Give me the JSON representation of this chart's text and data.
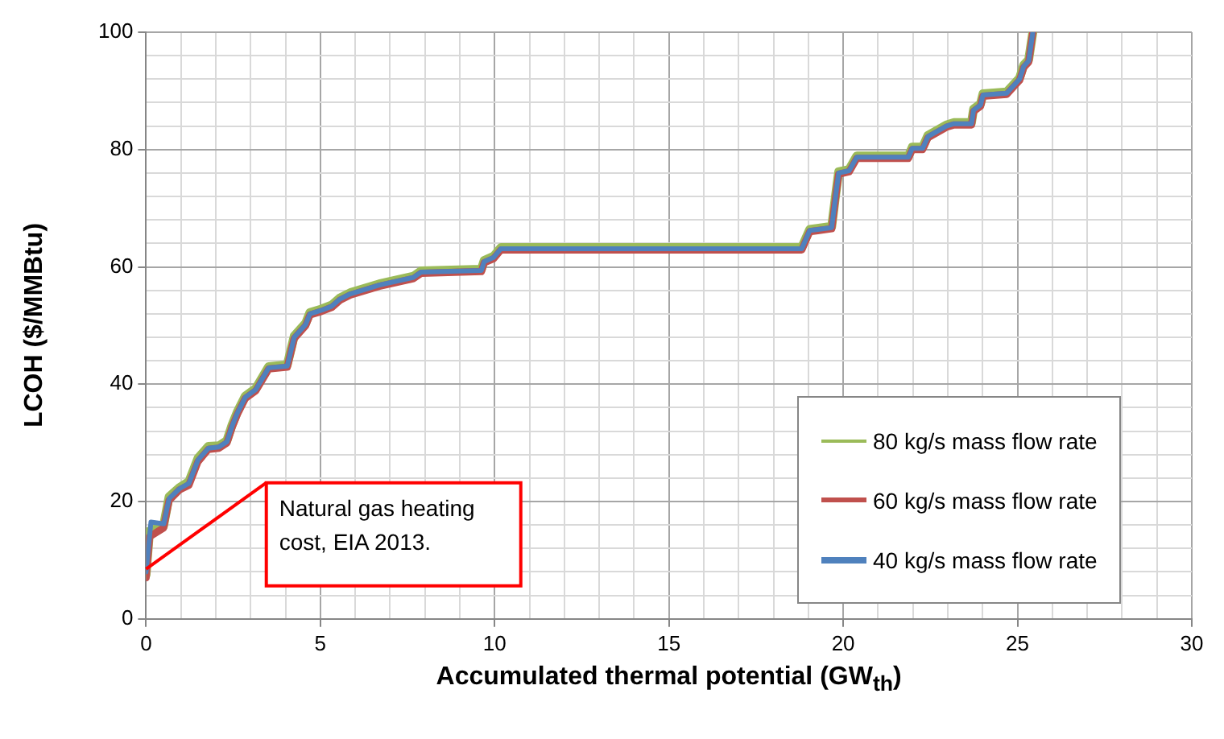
{
  "chart_data": {
    "type": "line",
    "xlabel": "Accumulated thermal potential (GW$_{th}$)",
    "ylabel": "LCOH ($/MMBtu)",
    "xlim": [
      0,
      30
    ],
    "ylim": [
      0,
      100
    ],
    "xticks": [
      0,
      {
        "value": 1,
        "label": null
      },
      {
        "value": 2,
        "label": null
      },
      {
        "value": 3,
        "label": null
      },
      {
        "value": 4,
        "label": null
      },
      5,
      {
        "value": 6,
        "label": null
      },
      {
        "value": 7,
        "label": null
      },
      {
        "value": 8,
        "label": null
      },
      {
        "value": 9,
        "label": null
      },
      10,
      {
        "value": 11,
        "label": null
      },
      {
        "value": 12,
        "label": null
      },
      {
        "value": 13,
        "label": null
      },
      {
        "value": 14,
        "label": null
      },
      15,
      {
        "value": 16,
        "label": null
      },
      {
        "value": 17,
        "label": null
      },
      {
        "value": 18,
        "label": null
      },
      {
        "value": 19,
        "label": null
      },
      20,
      {
        "value": 21,
        "label": null
      },
      {
        "value": 22,
        "label": null
      },
      {
        "value": 23,
        "label": null
      },
      {
        "value": 24,
        "label": null
      },
      25,
      {
        "value": 26,
        "label": null
      },
      {
        "value": 27,
        "label": null
      },
      {
        "value": 28,
        "label": null
      },
      {
        "value": 29,
        "label": null
      },
      30
    ],
    "yticks": [
      0,
      {
        "value": 4,
        "label": null
      },
      {
        "value": 8,
        "label": null
      },
      {
        "value": 12,
        "label": null
      },
      {
        "value": 16,
        "label": null
      },
      20,
      {
        "value": 24,
        "label": null
      },
      {
        "value": 28,
        "label": null
      },
      {
        "value": 32,
        "label": null
      },
      {
        "value": 36,
        "label": null
      },
      40,
      {
        "value": 44,
        "label": null
      },
      {
        "value": 48,
        "label": null
      },
      {
        "value": 52,
        "label": null
      },
      {
        "value": 56,
        "label": null
      },
      60,
      {
        "value": 64,
        "label": null
      },
      {
        "value": 68,
        "label": null
      },
      {
        "value": 72,
        "label": null
      },
      {
        "value": 76,
        "label": null
      },
      80,
      {
        "value": 84,
        "label": null
      },
      {
        "value": 88,
        "label": null
      },
      {
        "value": 92,
        "label": null
      },
      {
        "value": 96,
        "label": null
      },
      100
    ],
    "grid": true,
    "legend": "bottom right",
    "marker": "none",
    "line_style": "solid",
    "annotations": [
      {
        "text": "Natural gas heating cost, EIA 2013.",
        "x": 0,
        "y": 8.5
      }
    ],
    "series": [
      {
        "name": "80 kg/s mass flow rate",
        "color": "#9bbb59",
        "x": [
          0,
          0.1,
          0.5,
          0.66,
          0.96,
          1.23,
          1.49,
          1.79,
          2.09,
          2.32,
          2.47,
          2.62,
          2.85,
          3.15,
          3.52,
          4.05,
          4.25,
          4.58,
          4.7,
          5.03,
          5.33,
          5.56,
          5.86,
          6.69,
          7.67,
          7.89,
          9.62,
          9.7,
          9.97,
          10.18,
          18.81,
          19.04,
          19.67,
          19.79,
          19.87,
          20.17,
          20.39,
          21.87,
          21.98,
          22.28,
          22.43,
          22.96,
          23.18,
          23.68,
          23.74,
          23.94,
          24.01,
          24.69,
          25.06,
          25.18,
          25.32,
          25.44
        ],
        "values": [
          7.5,
          15,
          15.8,
          20.8,
          22.4,
          23.4,
          27.4,
          29.4,
          29.5,
          30.4,
          33.1,
          35.3,
          38,
          39.3,
          43,
          43.3,
          48.2,
          50.4,
          52.2,
          52.8,
          53.5,
          54.7,
          55.6,
          57.1,
          58.4,
          59.3,
          59.6,
          61.1,
          61.8,
          63.3,
          63.3,
          66.4,
          66.9,
          72.6,
          76.2,
          76.6,
          78.9,
          78.9,
          80.4,
          80.4,
          82.4,
          84.2,
          84.6,
          84.6,
          86.9,
          87.8,
          89.5,
          89.8,
          92.2,
          94.4,
          95.3,
          100
        ]
      },
      {
        "name": "60 kg/s mass flow rate",
        "color": "#c0504d",
        "x": [
          0,
          0.1,
          0.5,
          0.66,
          0.96,
          1.23,
          1.49,
          1.79,
          2.09,
          2.32,
          2.47,
          2.62,
          2.85,
          3.15,
          3.52,
          4.05,
          4.25,
          4.58,
          4.7,
          5.03,
          5.33,
          5.56,
          5.86,
          6.69,
          7.67,
          7.89,
          9.62,
          9.7,
          9.97,
          10.18,
          18.81,
          19.04,
          19.67,
          19.79,
          19.87,
          20.17,
          20.39,
          21.87,
          21.98,
          22.28,
          22.43,
          22.96,
          23.18,
          23.68,
          23.74,
          23.94,
          24.01,
          24.69,
          25.06,
          25.18,
          25.32,
          25.44
        ],
        "values": [
          7,
          14,
          15.5,
          20.2,
          22,
          22.8,
          26.8,
          28.9,
          29.1,
          30,
          32.7,
          34.9,
          37.6,
          38.9,
          42.6,
          42.9,
          47.8,
          50,
          51.8,
          52.4,
          53.1,
          54.3,
          55.2,
          56.7,
          58,
          58.9,
          59.2,
          60.7,
          61.4,
          62.9,
          62.9,
          66,
          66.5,
          72.2,
          75.8,
          76.2,
          78.5,
          78.5,
          80,
          80,
          82,
          83.8,
          84.2,
          84.2,
          86.5,
          87.4,
          89.1,
          89.4,
          91.8,
          94,
          94.9,
          100
        ]
      },
      {
        "name": "40 kg/s mass flow rate",
        "color": "#4f81bd",
        "x": [
          0,
          0.14,
          0.51,
          0.66,
          0.96,
          1.23,
          1.49,
          1.79,
          2.09,
          2.32,
          2.47,
          2.62,
          2.85,
          3.15,
          3.52,
          4.05,
          4.25,
          4.58,
          4.7,
          5.03,
          5.33,
          5.56,
          5.86,
          6.69,
          7.67,
          7.89,
          9.62,
          9.7,
          9.97,
          10.18,
          18.81,
          19.04,
          19.67,
          19.79,
          19.87,
          20.17,
          20.39,
          21.87,
          21.98,
          22.28,
          22.43,
          22.96,
          23.18,
          23.68,
          23.74,
          23.94,
          24.01,
          24.69,
          25.06,
          25.18,
          25.32,
          25.44
        ],
        "values": [
          8,
          16.5,
          16.2,
          20.5,
          22.2,
          23.1,
          27.1,
          29.1,
          29.3,
          30.2,
          32.9,
          35.1,
          37.8,
          39.1,
          42.8,
          43.1,
          48,
          50.2,
          52,
          52.6,
          53.3,
          54.5,
          55.4,
          56.9,
          58.2,
          59.1,
          59.4,
          60.9,
          61.6,
          63.1,
          63.1,
          66.2,
          66.7,
          72.4,
          76,
          76.4,
          78.7,
          78.7,
          80.2,
          80.2,
          82.2,
          84,
          84.4,
          84.4,
          86.7,
          87.6,
          89.3,
          89.6,
          92,
          94.2,
          95.1,
          100
        ]
      }
    ]
  }
}
